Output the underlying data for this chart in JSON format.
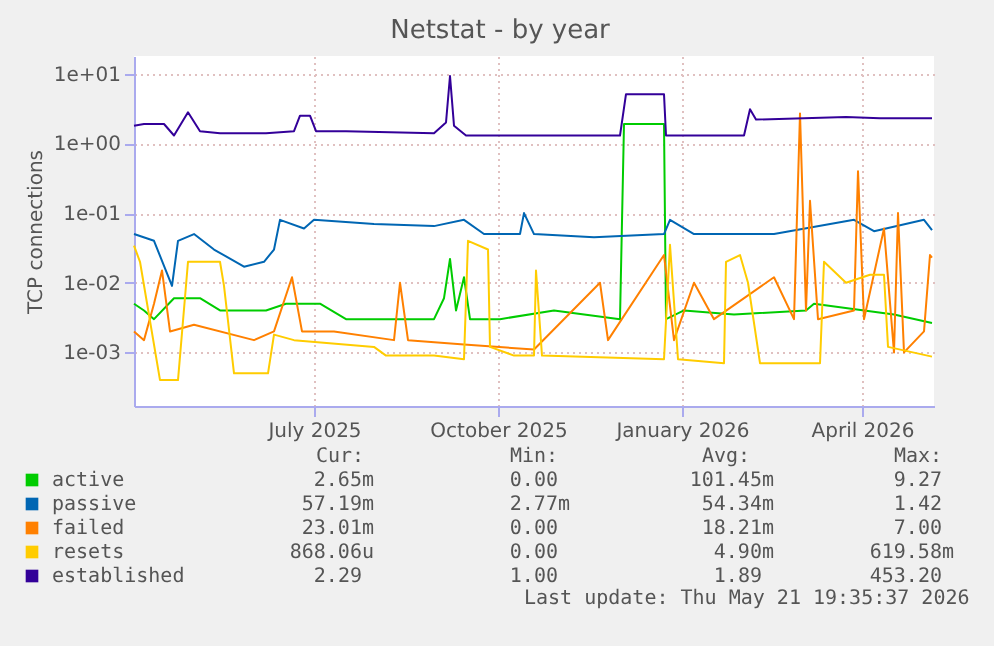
{
  "chart_data": {
    "type": "line",
    "title": "Netstat - by year",
    "ylabel": "TCP connections",
    "log": true,
    "grid": true,
    "legend": "bottom",
    "xlim": [
      "2025-04-17",
      "2026-05-22"
    ],
    "xticks": [
      {
        "value": "2025-07-16",
        "label": "July 2025"
      },
      {
        "value": "2025-10-16",
        "label": "October 2025"
      },
      {
        "value": "2026-01-16",
        "label": "January 2026"
      },
      {
        "value": "2026-04-16",
        "label": "April 2026"
      }
    ],
    "ylim": [
      0.00017,
      18
    ],
    "yticks": [
      {
        "value": 10,
        "label": "1e+01"
      },
      {
        "value": 1,
        "label": "1e+00"
      },
      {
        "value": 0.1,
        "label": "1e-01"
      },
      {
        "value": 0.01,
        "label": "1e-02"
      },
      {
        "value": 0.001,
        "label": "1e-03"
      }
    ],
    "series": [
      {
        "name": "active",
        "color": "#00cc00",
        "x": [
          "2025-04-17",
          "2025-04-22",
          "2025-04-27",
          "2025-05-07",
          "2025-05-20",
          "2025-05-30",
          "2025-06-22",
          "2025-07-02",
          "2025-07-19",
          "2025-08-01",
          "2025-09-14",
          "2025-09-19",
          "2025-09-22",
          "2025-09-25",
          "2025-09-29",
          "2025-10-02",
          "2025-10-17",
          "2025-11-13",
          "2025-12-16",
          "2025-12-18",
          "2026-01-07",
          "2026-01-08",
          "2026-01-17",
          "2026-02-11",
          "2026-03-19",
          "2026-03-23",
          "2026-05-02",
          "2026-05-21"
        ],
        "values": [
          0.005,
          0.004,
          0.003,
          0.006,
          0.006,
          0.004,
          0.004,
          0.005,
          0.005,
          0.003,
          0.003,
          0.006,
          0.022,
          0.004,
          0.012,
          0.003,
          0.003,
          0.004,
          0.003,
          1.9,
          1.9,
          0.003,
          0.004,
          0.0035,
          0.004,
          0.005,
          0.0035,
          0.00265
        ]
      },
      {
        "name": "passive",
        "color": "#0066b3",
        "x": [
          "2025-04-17",
          "2025-04-27",
          "2025-05-06",
          "2025-05-09",
          "2025-05-17",
          "2025-05-27",
          "2025-06-11",
          "2025-06-21",
          "2025-06-26",
          "2025-06-29",
          "2025-07-11",
          "2025-07-16",
          "2025-08-15",
          "2025-09-14",
          "2025-09-29",
          "2025-10-09",
          "2025-10-27",
          "2025-10-29",
          "2025-11-03",
          "2025-12-03",
          "2026-01-07",
          "2026-01-10",
          "2026-01-22",
          "2026-03-03",
          "2026-04-12",
          "2026-04-22",
          "2026-05-17",
          "2026-05-21"
        ],
        "values": [
          0.05,
          0.04,
          0.009,
          0.04,
          0.05,
          0.03,
          0.017,
          0.02,
          0.03,
          0.08,
          0.06,
          0.08,
          0.07,
          0.065,
          0.08,
          0.05,
          0.05,
          0.1,
          0.05,
          0.045,
          0.05,
          0.08,
          0.05,
          0.05,
          0.08,
          0.055,
          0.08,
          0.057
        ]
      },
      {
        "name": "failed",
        "color": "#ff8000",
        "x": [
          "2025-04-17",
          "2025-04-22",
          "2025-04-27",
          "2025-05-01",
          "2025-05-05",
          "2025-05-17",
          "2025-06-16",
          "2025-06-26",
          "2025-07-05",
          "2025-07-10",
          "2025-07-26",
          "2025-08-25",
          "2025-08-28",
          "2025-09-01",
          "2025-09-29",
          "2025-11-03",
          "2025-12-06",
          "2025-12-10",
          "2026-01-07",
          "2026-01-12",
          "2026-01-22",
          "2026-02-01",
          "2026-03-03",
          "2026-03-13",
          "2026-03-16",
          "2026-03-19",
          "2026-03-21",
          "2026-03-25",
          "2026-04-12",
          "2026-04-14",
          "2026-04-17",
          "2026-04-27",
          "2026-05-02",
          "2026-05-04",
          "2026-05-07",
          "2026-05-17",
          "2026-05-20",
          "2026-05-21"
        ],
        "values": [
          0.002,
          0.0015,
          0.005,
          0.015,
          0.002,
          0.0025,
          0.0015,
          0.002,
          0.012,
          0.002,
          0.002,
          0.0015,
          0.01,
          0.0015,
          0.0013,
          0.0011,
          0.01,
          0.0015,
          0.025,
          0.0015,
          0.01,
          0.003,
          0.012,
          0.003,
          2.7,
          0.004,
          0.15,
          0.003,
          0.004,
          0.4,
          0.003,
          0.06,
          0.001,
          0.1,
          0.001,
          0.002,
          0.025,
          0.023
        ]
      },
      {
        "name": "resets",
        "color": "#ffcc00",
        "x": [
          "2025-04-17",
          "2025-04-20",
          "2025-04-30",
          "2025-05-09",
          "2025-05-14",
          "2025-05-30",
          "2025-06-01",
          "2025-06-06",
          "2025-06-23",
          "2025-06-26",
          "2025-07-06",
          "2025-08-15",
          "2025-08-21",
          "2025-09-14",
          "2025-09-29",
          "2025-10-01",
          "2025-10-11",
          "2025-10-12",
          "2025-10-24",
          "2025-11-03",
          "2025-11-04",
          "2025-11-07",
          "2026-01-07",
          "2026-01-10",
          "2026-01-14",
          "2026-02-06",
          "2026-02-07",
          "2026-02-14",
          "2026-02-18",
          "2026-02-24",
          "2026-03-26",
          "2026-03-28",
          "2026-04-08",
          "2026-04-20",
          "2026-04-27",
          "2026-04-29",
          "2026-05-21"
        ],
        "values": [
          0.034,
          0.02,
          0.0004,
          0.0004,
          0.02,
          0.02,
          0.009,
          0.0005,
          0.0005,
          0.0018,
          0.0015,
          0.0012,
          0.0009,
          0.0009,
          0.0008,
          0.04,
          0.03,
          0.0012,
          0.0009,
          0.0009,
          0.015,
          0.0009,
          0.0008,
          0.035,
          0.0008,
          0.0007,
          0.02,
          0.025,
          0.01,
          0.0007,
          0.0007,
          0.02,
          0.01,
          0.013,
          0.013,
          0.0012,
          0.00087
        ]
      },
      {
        "name": "established",
        "color": "#330099",
        "x": [
          "2025-04-17",
          "2025-04-22",
          "2025-05-02",
          "2025-05-07",
          "2025-05-14",
          "2025-05-20",
          "2025-05-30",
          "2025-06-22",
          "2025-07-06",
          "2025-07-09",
          "2025-07-14",
          "2025-07-17",
          "2025-08-01",
          "2025-09-14",
          "2025-09-20",
          "2025-09-22",
          "2025-09-24",
          "2025-09-30",
          "2025-10-17",
          "2025-10-27",
          "2025-12-16",
          "2025-12-19",
          "2026-01-07",
          "2026-01-08",
          "2026-02-16",
          "2026-02-19",
          "2026-02-22",
          "2026-04-08",
          "2026-04-25",
          "2026-05-21"
        ],
        "values": [
          1.8,
          1.9,
          1.9,
          1.3,
          2.8,
          1.5,
          1.4,
          1.4,
          1.5,
          2.5,
          2.5,
          1.5,
          1.5,
          1.4,
          2,
          9.3,
          1.8,
          1.3,
          1.3,
          1.3,
          1.3,
          5.1,
          5.1,
          1.3,
          1.3,
          3.1,
          2.2,
          2.4,
          2.3,
          2.29
        ]
      }
    ],
    "annotations": [
      "Cur:",
      "Min:",
      "Avg:",
      "Max:",
      "2.65m",
      "0.00",
      "101.45m",
      "9.27",
      "57.19m",
      "2.77m",
      "54.34m",
      "1.42",
      "23.01m",
      "0.00",
      "18.21m",
      "7.00",
      "868.06u",
      "0.00",
      "4.90m",
      "619.58m",
      "2.29",
      "1.00",
      "1.89",
      "453.20",
      "Last update: Thu May 21 19:35:37 2026"
    ]
  }
}
